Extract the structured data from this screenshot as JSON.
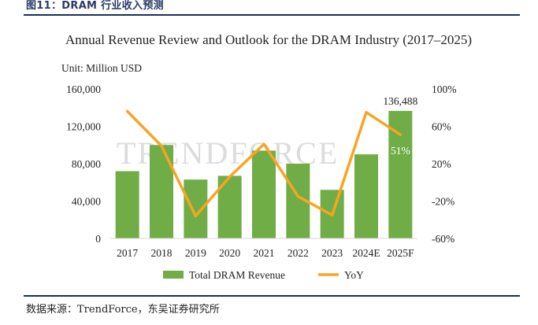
{
  "figure": {
    "caption": "图11：DRAM 行业收入预测",
    "source": "数据来源：TrendForce，东吴证券研究所",
    "watermark": "TRENDFORCE"
  },
  "chart_data": {
    "type": "bar",
    "title": "Annual Revenue Review and Outlook for the DRAM Industry (2017–2025)",
    "unit_label": "Unit: Million USD",
    "categories": [
      "2017",
      "2018",
      "2019",
      "2020",
      "2021",
      "2022",
      "2023",
      "2024E",
      "2025F"
    ],
    "series": [
      {
        "name": "Total DRAM Revenue",
        "type": "bar",
        "axis": "left",
        "color": "#70ad47",
        "values": [
          72000,
          100000,
          63000,
          67000,
          94000,
          80000,
          52000,
          90000,
          136488
        ]
      },
      {
        "name": "YoY",
        "type": "line",
        "axis": "right",
        "color": "#f5a623",
        "values": [
          76,
          39,
          -36,
          6,
          41,
          -15,
          -35,
          75,
          51
        ]
      }
    ],
    "annotations": [
      {
        "category": "2025F",
        "text": "136,488"
      },
      {
        "category": "2025F",
        "text": "51%"
      }
    ],
    "y_left": {
      "min": 0,
      "max": 160000,
      "ticks": [
        "0",
        "40,000",
        "80,000",
        "120,000",
        "160,000"
      ]
    },
    "y_right": {
      "min": -60,
      "max": 100,
      "ticks": [
        "-60%",
        "-20%",
        "20%",
        "60%",
        "100%"
      ]
    },
    "grid": false,
    "legend_position": "bottom"
  }
}
